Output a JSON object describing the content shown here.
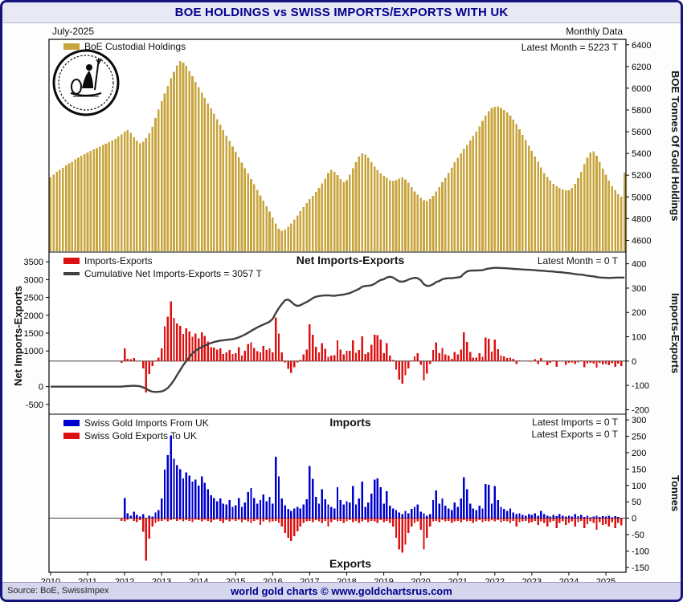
{
  "header": {
    "title": "BOE HOLDINGS vs SWISS IMPORTS/EXPORTS WITH UK",
    "date_label": "July-2025",
    "frequency_label": "Monthly Data"
  },
  "panel_boe": {
    "legend_label": "BoE Custodial Holdings",
    "latest_label": "Latest Month = 5223 T",
    "axis_label": "BOE Tonnes Of Gold Holdings"
  },
  "panel_net": {
    "legend_bars_label": "Imports-Exports",
    "legend_line_label": "Cumulative Net Imports-Exports = 3057 T",
    "title": "Net Imports-Exports",
    "latest_label": "Latest Month = 0 T",
    "left_axis_label": "Net Imports-Exports",
    "right_axis_label": "Imports-Exports"
  },
  "panel_flows": {
    "legend_imports_label": "Swiss Gold Imports From UK",
    "legend_exports_label": "Swiss Gold Exports To UK",
    "imports_title": "Imports",
    "exports_title": "Exports",
    "latest_imports_label": "Latest Imports = 0 T",
    "latest_exports_label": "Latest Exports = 0 T",
    "right_axis_label": "Tonnes"
  },
  "footer": {
    "source": "Source: BoE, SwissImpex",
    "credit": "world gold charts © www.goldchartsrus.com"
  },
  "colors": {
    "gold": "#c8a43c",
    "red": "#dd1111",
    "blue": "#0000cc",
    "line_dark": "#404040",
    "navy": "#00008b"
  },
  "chart_data": {
    "type": "bar",
    "subtype": "multi-panel-monthly-time-series",
    "x_start_year": 2010,
    "x_start_month": 1,
    "months": 187,
    "x_year_ticks": [
      2010,
      2011,
      2012,
      2013,
      2014,
      2015,
      2016,
      2017,
      2018,
      2019,
      2020,
      2021,
      2022,
      2023,
      2024,
      2025
    ],
    "panels": [
      {
        "id": "boe-holdings",
        "type": "bar",
        "series_name": "BoE Custodial Holdings",
        "unit": "tonnes",
        "latest_month": "July-2025",
        "latest_value": 5223,
        "y_axis_side": "right",
        "y_label": "BOE Tonnes Of Gold Holdings",
        "y_range": [
          4500,
          6450
        ],
        "y_ticks": [
          6400,
          6200,
          6000,
          5800,
          5600,
          5400,
          5200,
          5000,
          4800,
          4600
        ],
        "bar_color": "#c8a43c",
        "values": [
          5180,
          5205,
          5230,
          5250,
          5270,
          5290,
          5310,
          5325,
          5345,
          5360,
          5378,
          5395,
          5410,
          5425,
          5438,
          5450,
          5465,
          5478,
          5490,
          5505,
          5520,
          5535,
          5555,
          5575,
          5600,
          5615,
          5590,
          5550,
          5515,
          5495,
          5510,
          5540,
          5585,
          5645,
          5725,
          5805,
          5880,
          5950,
          6020,
          6090,
          6150,
          6210,
          6250,
          6235,
          6205,
          6160,
          6110,
          6060,
          6010,
          5960,
          5910,
          5860,
          5815,
          5765,
          5715,
          5665,
          5615,
          5565,
          5515,
          5465,
          5415,
          5365,
          5315,
          5265,
          5215,
          5165,
          5115,
          5065,
          5015,
          4965,
          4915,
          4865,
          4810,
          4755,
          4705,
          4690,
          4700,
          4725,
          4755,
          4790,
          4830,
          4870,
          4905,
          4945,
          4980,
          5010,
          5045,
          5085,
          5125,
          5170,
          5220,
          5250,
          5230,
          5200,
          5165,
          5135,
          5155,
          5205,
          5265,
          5320,
          5370,
          5400,
          5390,
          5360,
          5320,
          5280,
          5245,
          5215,
          5195,
          5175,
          5155,
          5145,
          5155,
          5170,
          5180,
          5160,
          5130,
          5090,
          5050,
          5020,
          4990,
          4970,
          4960,
          4980,
          5010,
          5050,
          5090,
          5135,
          5175,
          5220,
          5270,
          5320,
          5360,
          5400,
          5440,
          5480,
          5520,
          5560,
          5600,
          5650,
          5700,
          5750,
          5790,
          5820,
          5830,
          5832,
          5820,
          5800,
          5778,
          5750,
          5712,
          5670,
          5622,
          5572,
          5522,
          5472,
          5422,
          5372,
          5322,
          5272,
          5222,
          5182,
          5150,
          5122,
          5100,
          5082,
          5070,
          5062,
          5060,
          5082,
          5120,
          5172,
          5232,
          5300,
          5360,
          5408,
          5420,
          5380,
          5322,
          5262,
          5205,
          5150,
          5100,
          5060,
          5025,
          5002,
          5223
        ]
      },
      {
        "id": "net-imports-exports",
        "type": "bar+line",
        "bars_name": "Imports-Exports",
        "line_name": "Cumulative Net Imports-Exports",
        "cumulative_total": 3057,
        "latest_value": 0,
        "left_y_label": "Net Imports-Exports",
        "left_y_range": [
          -750,
          3750
        ],
        "left_y_ticks": [
          3500,
          3000,
          2500,
          2000,
          1500,
          1000,
          0,
          -500
        ],
        "right_y_label": "Imports-Exports",
        "right_y_range": [
          -215,
          445
        ],
        "right_y_ticks": [
          400,
          300,
          200,
          100,
          0,
          -100,
          -200
        ],
        "bar_color": "#dd1111",
        "line_color": "#404040",
        "cumulative_values": [
          0,
          0,
          0,
          0,
          0,
          0,
          0,
          0,
          0,
          0,
          0,
          0,
          0,
          0,
          0,
          0,
          0,
          0,
          0,
          0,
          0,
          0,
          0,
          0,
          10,
          15,
          20,
          25,
          20,
          10,
          -20,
          -60,
          -110,
          -140,
          -150,
          -145,
          -135,
          -100,
          -40,
          60,
          180,
          320,
          460,
          600,
          720,
          830,
          930,
          1010,
          1060,
          1110,
          1150,
          1190,
          1220,
          1250,
          1270,
          1290,
          1300,
          1310,
          1320,
          1330,
          1350,
          1380,
          1420,
          1460,
          1510,
          1560,
          1610,
          1660,
          1700,
          1740,
          1780,
          1820,
          1900,
          2060,
          2200,
          2320,
          2420,
          2440,
          2380,
          2300,
          2260,
          2280,
          2330,
          2370,
          2420,
          2480,
          2520,
          2540,
          2550,
          2555,
          2560,
          2550,
          2545,
          2560,
          2570,
          2580,
          2600,
          2620,
          2660,
          2700,
          2740,
          2800,
          2820,
          2830,
          2840,
          2880,
          2940,
          2990,
          3010,
          3060,
          3080,
          3060,
          3000,
          2950,
          2940,
          2960,
          3000,
          3030,
          3050,
          3040,
          2980,
          2870,
          2820,
          2830,
          2870,
          2930,
          2960,
          3010,
          3030,
          3040,
          3040,
          3050,
          3060,
          3080,
          3170,
          3230,
          3250,
          3255,
          3255,
          3260,
          3265,
          3290,
          3310,
          3320,
          3330,
          3330,
          3325,
          3320,
          3315,
          3310,
          3300,
          3295,
          3290,
          3285,
          3280,
          3275,
          3270,
          3265,
          3255,
          3250,
          3245,
          3235,
          3230,
          3225,
          3215,
          3210,
          3200,
          3190,
          3180,
          3170,
          3155,
          3145,
          3140,
          3125,
          3110,
          3100,
          3090,
          3070,
          3060,
          3055,
          3050,
          3045,
          3050,
          3055,
          3057,
          3057,
          3057
        ]
      },
      {
        "id": "swiss-uk-flows",
        "type": "bar",
        "latest_imports": 0,
        "latest_exports": 0,
        "right_y_label": "Tonnes",
        "right_y_range": [
          -165,
          315
        ],
        "right_y_ticks": [
          300,
          250,
          200,
          150,
          100,
          50,
          0,
          -50,
          -100,
          -150
        ],
        "series": [
          {
            "name": "Swiss Gold Imports From UK",
            "color": "#0000cc",
            "values": [
              0,
              0,
              0,
              0,
              0,
              0,
              0,
              0,
              0,
              0,
              0,
              0,
              0,
              0,
              0,
              0,
              0,
              0,
              0,
              0,
              0,
              0,
              0,
              0,
              62,
              15,
              8,
              20,
              10,
              5,
              12,
              0,
              8,
              5,
              18,
              25,
              60,
              148,
              192,
              252,
              182,
              162,
              150,
              122,
              140,
              130,
              112,
              118,
              100,
              128,
              108,
              88,
              70,
              62,
              52,
              60,
              45,
              42,
              55,
              35,
              40,
              62,
              35,
              48,
              80,
              92,
              62,
              45,
              55,
              72,
              52,
              65,
              45,
              188,
              128,
              60,
              40,
              28,
              22,
              30,
              35,
              30,
              42,
              58,
              160,
              120,
              65,
              45,
              88,
              58,
              42,
              35,
              30,
              95,
              55,
              42,
              52,
              48,
              98,
              42,
              60,
              112,
              35,
              48,
              75,
              118,
              122,
              95,
              45,
              82,
              38,
              30,
              25,
              18,
              12,
              22,
              15,
              28,
              35,
              42,
              20,
              15,
              8,
              12,
              55,
              85,
              45,
              60,
              38,
              30,
              25,
              48,
              35,
              60,
              125,
              88,
              45,
              30,
              25,
              38,
              30,
              105,
              102,
              45,
              98,
              55,
              35,
              28,
              22,
              30,
              18,
              12,
              15,
              10,
              8,
              12,
              10,
              15,
              8,
              22,
              12,
              8,
              5,
              10,
              6,
              12,
              8,
              5,
              8,
              5,
              12,
              6,
              10,
              4,
              8,
              3,
              5,
              8,
              4,
              6,
              5,
              8,
              3,
              6,
              4,
              2,
              0
            ]
          },
          {
            "name": "Swiss Gold Exports To UK",
            "color": "#dd1111",
            "values": [
              0,
              0,
              0,
              0,
              0,
              0,
              0,
              0,
              0,
              0,
              0,
              0,
              0,
              0,
              0,
              0,
              0,
              0,
              0,
              0,
              0,
              0,
              0,
              -8,
              -10,
              -5,
              0,
              -8,
              -12,
              -6,
              -42,
              -130,
              -62,
              -25,
              -15,
              -10,
              -8,
              -5,
              -10,
              -6,
              -4,
              -8,
              -5,
              -10,
              -6,
              -8,
              -12,
              -5,
              -6,
              -10,
              -5,
              -8,
              -12,
              -6,
              -4,
              -8,
              -15,
              -6,
              -10,
              -5,
              -8,
              -5,
              -12,
              -6,
              -10,
              -15,
              -8,
              -5,
              -20,
              -10,
              -6,
              -12,
              -10,
              -8,
              -15,
              -25,
              -45,
              -60,
              -70,
              -55,
              -40,
              -25,
              -15,
              -10,
              -8,
              -12,
              -6,
              -10,
              -15,
              -8,
              -25,
              -12,
              -6,
              -10,
              -8,
              -15,
              -10,
              -6,
              -12,
              -8,
              -15,
              -10,
              -6,
              -12,
              -8,
              -10,
              -15,
              -6,
              -12,
              -8,
              -15,
              -25,
              -60,
              -95,
              -105,
              -80,
              -45,
              -25,
              -15,
              -10,
              -35,
              -95,
              -60,
              -25,
              -10,
              -8,
              -12,
              -6,
              -10,
              -8,
              -15,
              -10,
              -8,
              -12,
              -6,
              -10,
              -8,
              -15,
              -10,
              -6,
              -12,
              -8,
              -10,
              -6,
              -10,
              -6,
              -12,
              -8,
              -10,
              -15,
              -8,
              -25,
              -12,
              -10,
              -8,
              -15,
              -12,
              -8,
              -20,
              -10,
              -15,
              -25,
              -12,
              -8,
              -30,
              -15,
              -10,
              -20,
              -15,
              -10,
              -25,
              -12,
              -8,
              -30,
              -18,
              -10,
              -15,
              -35,
              -12,
              -20,
              -18,
              -25,
              -12,
              -30,
              -15,
              -22,
              0
            ]
          }
        ]
      }
    ]
  }
}
